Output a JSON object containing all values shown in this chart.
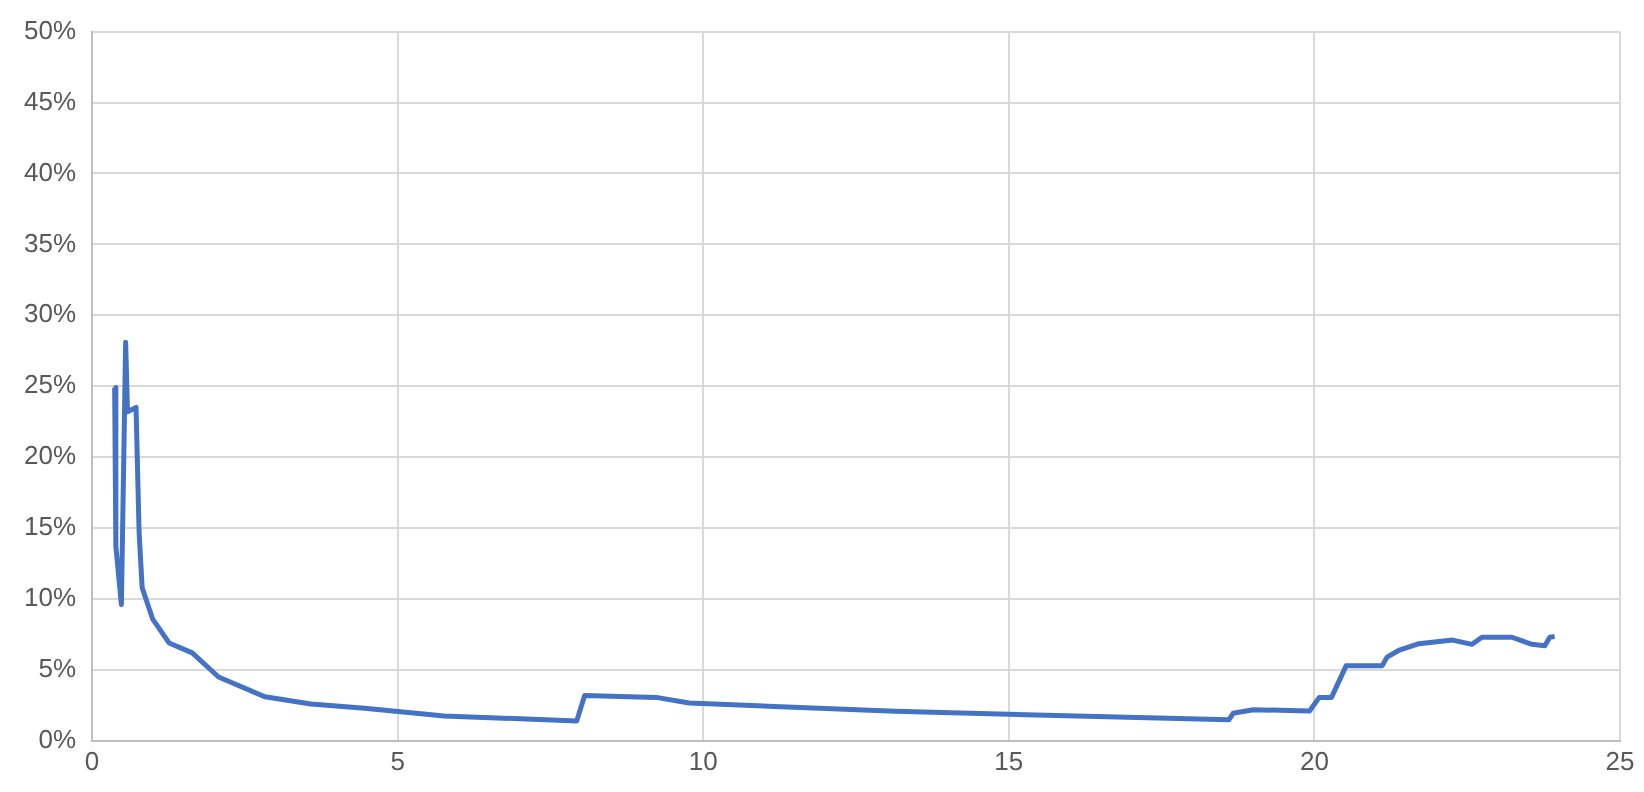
{
  "chart_data": {
    "type": "line",
    "x": [
      0.37,
      0.39,
      0.48,
      0.55,
      0.58,
      0.72,
      0.77,
      0.82,
      0.99,
      1.26,
      1.64,
      2.07,
      2.83,
      3.58,
      4.46,
      5.76,
      7.93,
      8.06,
      9.23,
      9.77,
      13.14,
      18.6,
      18.67,
      19.0,
      19.92,
      20.08,
      20.28,
      20.52,
      21.11,
      21.19,
      21.39,
      21.71,
      22.26,
      22.58,
      22.74,
      23.23,
      23.56,
      23.77,
      23.85,
      23.93
    ],
    "series": [
      {
        "color": "#4472c4",
        "values": [
          24.9,
          13.7,
          9.6,
          28.1,
          23.2,
          23.5,
          14.7,
          10.8,
          8.6,
          6.9,
          6.2,
          4.5,
          3.1,
          2.6,
          2.3,
          1.75,
          1.4,
          3.2,
          3.06,
          2.67,
          2.08,
          1.48,
          1.94,
          2.19,
          2.1,
          3.06,
          3.06,
          5.3,
          5.3,
          5.9,
          6.4,
          6.85,
          7.1,
          6.8,
          7.3,
          7.3,
          6.8,
          6.7,
          7.3,
          7.35
        ]
      }
    ],
    "xlim": [
      0,
      25
    ],
    "xticks": [
      0,
      5,
      10,
      15,
      20,
      25
    ],
    "ylim": [
      0,
      50
    ],
    "yticks": [
      {
        "value": 0,
        "label": "0%"
      },
      {
        "value": 5,
        "label": "5%"
      },
      {
        "value": 10,
        "label": "10%"
      },
      {
        "value": 15,
        "label": "15%"
      },
      {
        "value": 20,
        "label": "20%"
      },
      {
        "value": 25,
        "label": "25%"
      },
      {
        "value": 30,
        "label": "30%"
      },
      {
        "value": 35,
        "label": "35%"
      },
      {
        "value": 40,
        "label": "40%"
      },
      {
        "value": 45,
        "label": "45%"
      },
      {
        "value": 50,
        "label": "50%"
      }
    ],
    "grid": true,
    "legend": false
  }
}
